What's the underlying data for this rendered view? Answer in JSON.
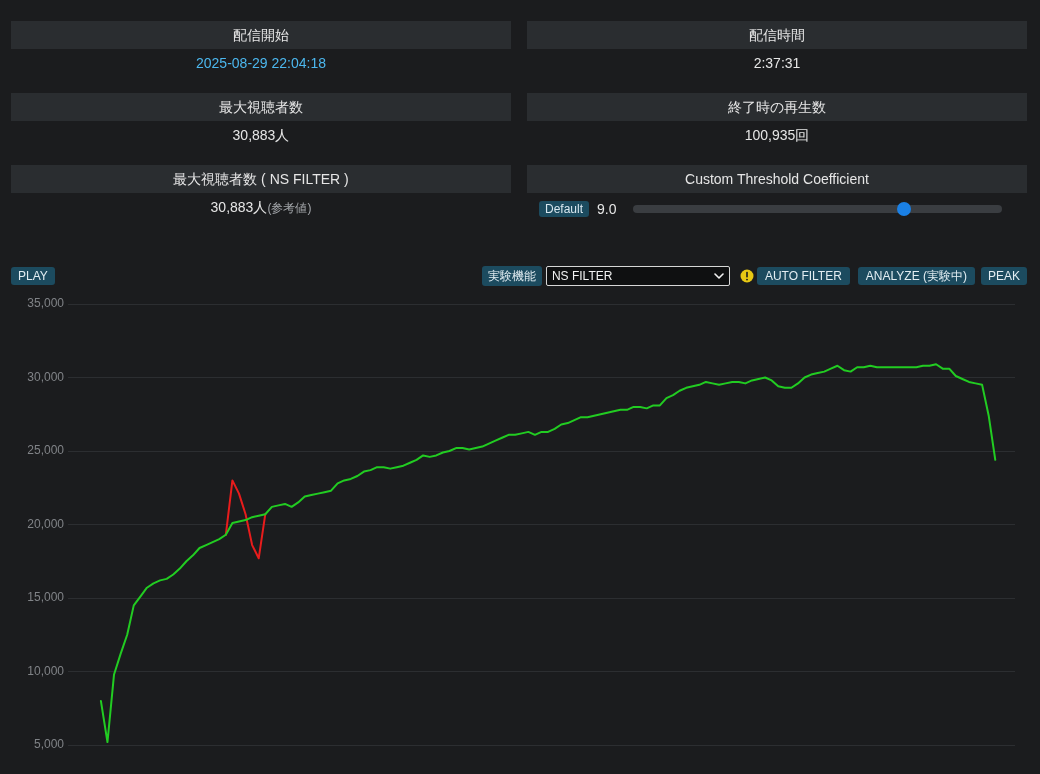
{
  "chart_data": [
    {
      "type": "other",
      "annotations": [
        "配信開始",
        "2025-08-29 22:04:18",
        "配信時間",
        "2:37:31",
        "最大視聴者数",
        "30,883人",
        "終了時の再生数",
        "100,935回",
        "最大視聴者数 ( NS FILTER )",
        "30,883人",
        "(参考値)",
        "Custom Threshold Coefficient",
        "Default",
        "9.0"
      ]
    },
    {
      "type": "line",
      "categories": [
        null,
        null,
        null,
        null,
        null,
        null,
        null,
        null,
        null,
        null,
        null,
        null,
        null,
        null,
        null,
        null,
        null,
        null,
        null,
        null,
        null,
        null,
        null,
        null,
        null,
        null,
        null,
        null,
        null,
        null,
        null,
        null,
        null,
        null,
        null,
        null,
        null,
        null,
        null,
        null,
        null,
        null,
        null,
        null,
        null,
        null,
        null,
        null,
        null,
        null,
        null,
        null,
        null,
        null,
        null,
        null,
        null,
        null,
        null,
        null,
        null,
        null,
        null,
        null,
        null,
        null,
        null,
        null,
        null,
        null,
        null,
        null,
        null,
        null,
        null,
        null,
        null,
        null,
        null,
        null,
        null,
        null,
        null,
        null,
        null,
        null,
        null,
        null,
        null,
        null,
        null,
        null,
        null,
        null,
        null,
        null,
        null,
        null,
        null,
        null,
        null,
        null,
        null,
        null,
        null,
        null,
        null,
        null,
        null,
        null,
        null,
        null,
        null,
        null,
        null,
        null,
        null,
        null,
        null,
        null,
        null,
        null,
        null,
        null,
        null,
        null,
        null,
        null,
        null,
        null,
        null,
        null,
        null,
        null,
        null,
        null,
        null,
        null,
        null,
        null,
        null,
        null,
        null,
        null,
        null
      ],
      "series": [
        {
          "color": "#22cc22",
          "values": [
            null,
            null,
            null,
            null,
            null,
            8000,
            5200,
            9800,
            11200,
            12500,
            14500,
            15100,
            15700,
            16000,
            16200,
            16300,
            16600,
            17000,
            17500,
            17900,
            18400,
            18600,
            18800,
            19000,
            19300,
            20100,
            20200,
            20300,
            20500,
            20600,
            20700,
            21200,
            21300,
            21400,
            21200,
            21500,
            21900,
            22000,
            22100,
            22200,
            22300,
            22800,
            23000,
            23100,
            23300,
            23600,
            23700,
            23900,
            23900,
            23800,
            23900,
            24000,
            24200,
            24400,
            24700,
            24600,
            24700,
            24900,
            25000,
            25200,
            25200,
            25100,
            25200,
            25300,
            25500,
            25700,
            25900,
            26100,
            26100,
            26200,
            26300,
            26100,
            26300,
            26300,
            26500,
            26800,
            26900,
            27100,
            27300,
            27300,
            27400,
            27500,
            27600,
            27700,
            27800,
            27800,
            28000,
            28000,
            27900,
            28100,
            28100,
            28600,
            28800,
            29100,
            29300,
            29400,
            29500,
            29700,
            29600,
            29500,
            29600,
            29700,
            29700,
            29600,
            29800,
            29900,
            30000,
            29800,
            29400,
            29300,
            29300,
            29600,
            30000,
            30200,
            30300,
            30400,
            30600,
            30800,
            30500,
            30400,
            30700,
            30700,
            30800,
            30700,
            30700,
            30700,
            30700,
            30700,
            30700,
            30700,
            30800,
            30800,
            30900,
            30600,
            30600,
            30100,
            29900,
            29700,
            29600,
            29500,
            27400,
            24400,
            null,
            null,
            null
          ]
        },
        {
          "color": "#e81c1c",
          "values": [
            null,
            null,
            null,
            null,
            null,
            null,
            null,
            null,
            null,
            null,
            null,
            null,
            null,
            null,
            null,
            null,
            null,
            null,
            null,
            null,
            null,
            null,
            null,
            null,
            19300,
            23000,
            22100,
            20700,
            18600,
            17700,
            20700,
            null,
            null,
            null,
            null,
            null,
            null,
            null,
            null,
            null,
            null,
            null,
            null,
            null,
            null,
            null,
            null,
            null,
            null,
            null,
            null,
            null,
            null,
            null,
            null,
            null,
            null,
            null,
            null,
            null,
            null,
            null,
            null,
            null,
            null,
            null,
            null,
            null,
            null,
            null,
            null,
            null,
            null,
            null,
            null,
            null,
            null,
            null,
            null,
            null,
            null,
            null,
            null,
            null,
            null,
            null,
            null,
            null,
            null,
            null,
            null,
            null,
            null,
            null,
            null,
            null,
            null,
            null,
            null,
            null,
            null,
            null,
            null,
            null,
            null,
            null,
            null,
            null,
            null,
            null,
            null,
            null,
            null,
            null,
            null,
            null,
            null,
            null,
            null,
            null,
            null,
            null,
            null,
            null,
            null,
            null,
            null,
            null,
            null,
            null,
            null,
            null,
            null,
            null,
            null,
            null,
            null,
            null,
            null,
            null,
            null,
            null,
            null,
            null,
            null
          ]
        }
      ],
      "ylim": [
        5000,
        35000
      ],
      "yticks": [
        {
          "value": 5000,
          "label": "5,000"
        },
        {
          "value": 10000,
          "label": "10,000"
        },
        {
          "value": 15000,
          "label": "15,000"
        },
        {
          "value": 20000,
          "label": "20,000"
        },
        {
          "value": 25000,
          "label": "25,000"
        },
        {
          "value": 30000,
          "label": "30,000"
        },
        {
          "value": 35000,
          "label": "35,000"
        }
      ],
      "grid": "y",
      "legend": false,
      "tick_labels": "y",
      "marker": "none",
      "line_style": "solid",
      "annotations": [
        "PLAY",
        "実験機能",
        "NS FILTER",
        "AUTO FILTER",
        "ANALYZE (実験中)",
        "PEAK"
      ]
    }
  ]
}
